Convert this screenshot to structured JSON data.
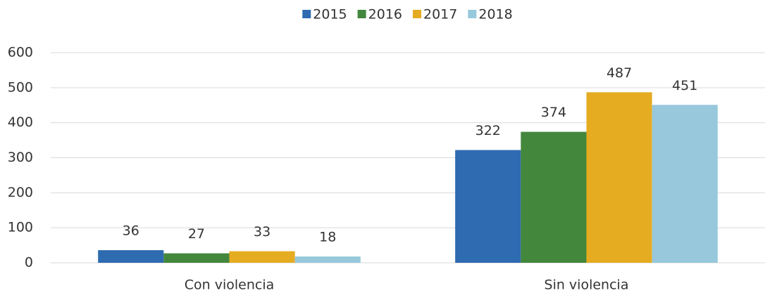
{
  "chart_data": {
    "type": "bar",
    "categories": [
      "Con violencia",
      "Sin violencia"
    ],
    "series": [
      {
        "name": "2015",
        "color": "#2e6bb0",
        "values": [
          36,
          322
        ]
      },
      {
        "name": "2016",
        "color": "#43873d",
        "values": [
          27,
          374
        ]
      },
      {
        "name": "2017",
        "color": "#e5ac22",
        "values": [
          33,
          487
        ]
      },
      {
        "name": "2018",
        "color": "#97c8dc",
        "values": [
          18,
          451
        ]
      }
    ],
    "ylim": [
      0,
      600
    ],
    "yticks": [
      0,
      100,
      200,
      300,
      400,
      500,
      600
    ],
    "grid": true,
    "legend": "top"
  }
}
